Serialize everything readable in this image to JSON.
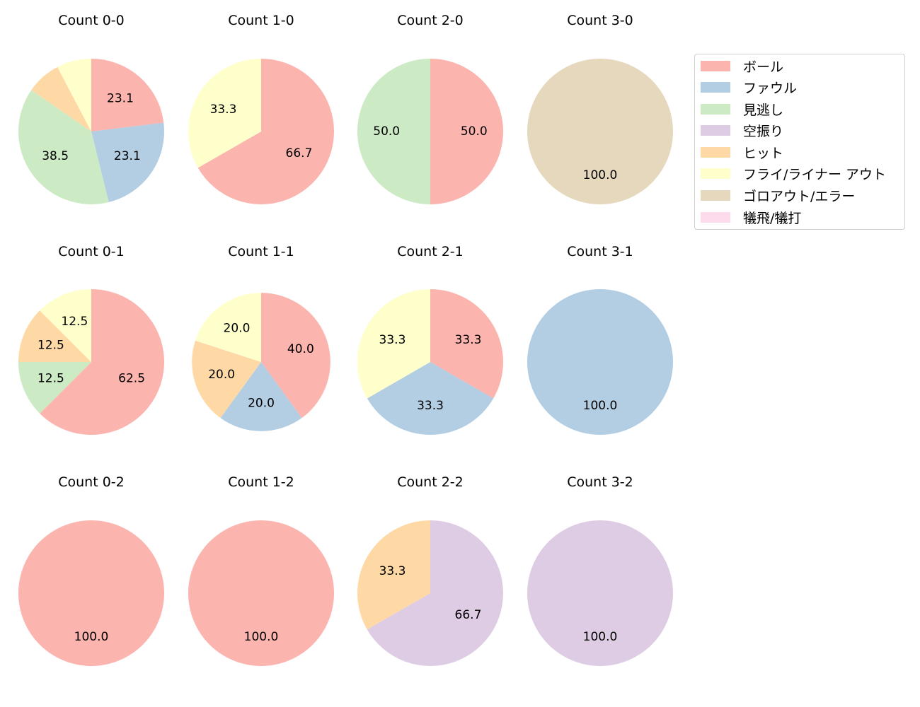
{
  "chart_data": {
    "type": "pie",
    "title": "",
    "legend": {
      "position": "upper right",
      "entries": [
        {
          "label": "ボール",
          "color": "#fbb4ae"
        },
        {
          "label": "ファウル",
          "color": "#b3cde3"
        },
        {
          "label": "見逃し",
          "color": "#ccebc5"
        },
        {
          "label": "空振り",
          "color": "#decbe4"
        },
        {
          "label": "ヒット",
          "color": "#fed9a6"
        },
        {
          "label": "フライ/ライナー アウト",
          "color": "#ffffcc"
        },
        {
          "label": "ゴロアウト/エラー",
          "color": "#e5d8bd"
        },
        {
          "label": "犠飛/犠打",
          "color": "#fddaec"
        }
      ]
    },
    "subplots": [
      {
        "title": "Count 0-0",
        "row": 0,
        "col": 0,
        "slices": [
          {
            "category": "ボール",
            "value": 23.1,
            "label": "23.1"
          },
          {
            "category": "ファウル",
            "value": 23.1,
            "label": "23.1"
          },
          {
            "category": "見逃し",
            "value": 38.5,
            "label": "38.5"
          },
          {
            "category": "ヒット",
            "value": 7.7,
            "label": ""
          },
          {
            "category": "フライ/ライナー アウト",
            "value": 7.7,
            "label": ""
          }
        ]
      },
      {
        "title": "Count 1-0",
        "row": 0,
        "col": 1,
        "slices": [
          {
            "category": "ボール",
            "value": 66.7,
            "label": "66.7"
          },
          {
            "category": "フライ/ライナー アウト",
            "value": 33.3,
            "label": "33.3"
          }
        ]
      },
      {
        "title": "Count 2-0",
        "row": 0,
        "col": 2,
        "slices": [
          {
            "category": "ボール",
            "value": 50.0,
            "label": "50.0"
          },
          {
            "category": "見逃し",
            "value": 50.0,
            "label": "50.0"
          }
        ]
      },
      {
        "title": "Count 3-0",
        "row": 0,
        "col": 3,
        "slices": [
          {
            "category": "ゴロアウト/エラー",
            "value": 100.0,
            "label": "100.0"
          }
        ]
      },
      {
        "title": "Count 0-1",
        "row": 1,
        "col": 0,
        "slices": [
          {
            "category": "ボール",
            "value": 62.5,
            "label": "62.5"
          },
          {
            "category": "見逃し",
            "value": 12.5,
            "label": "12.5"
          },
          {
            "category": "ヒット",
            "value": 12.5,
            "label": "12.5"
          },
          {
            "category": "フライ/ライナー アウト",
            "value": 12.5,
            "label": "12.5"
          }
        ]
      },
      {
        "title": "Count 1-1",
        "row": 1,
        "col": 1,
        "radius_scale": 0.95,
        "slices": [
          {
            "category": "ボール",
            "value": 40.0,
            "label": "40.0"
          },
          {
            "category": "ファウル",
            "value": 20.0,
            "label": "20.0"
          },
          {
            "category": "ヒット",
            "value": 20.0,
            "label": "20.0"
          },
          {
            "category": "フライ/ライナー アウト",
            "value": 20.0,
            "label": "20.0"
          }
        ]
      },
      {
        "title": "Count 2-1",
        "row": 1,
        "col": 2,
        "slices": [
          {
            "category": "ボール",
            "value": 33.3,
            "label": "33.3"
          },
          {
            "category": "ファウル",
            "value": 33.3,
            "label": "33.3"
          },
          {
            "category": "フライ/ライナー アウト",
            "value": 33.3,
            "label": "33.3"
          }
        ]
      },
      {
        "title": "Count 3-1",
        "row": 1,
        "col": 3,
        "slices": [
          {
            "category": "ファウル",
            "value": 100.0,
            "label": "100.0"
          }
        ]
      },
      {
        "title": "Count 0-2",
        "row": 2,
        "col": 0,
        "slices": [
          {
            "category": "ボール",
            "value": 100.0,
            "label": "100.0"
          }
        ]
      },
      {
        "title": "Count 1-2",
        "row": 2,
        "col": 1,
        "slices": [
          {
            "category": "ボール",
            "value": 100.0,
            "label": "100.0"
          }
        ]
      },
      {
        "title": "Count 2-2",
        "row": 2,
        "col": 2,
        "slices": [
          {
            "category": "空振り",
            "value": 66.7,
            "label": "66.7"
          },
          {
            "category": "ヒット",
            "value": 33.3,
            "label": "33.3"
          }
        ]
      },
      {
        "title": "Count 3-2",
        "row": 2,
        "col": 3,
        "slices": [
          {
            "category": "空振り",
            "value": 100.0,
            "label": "100.0"
          }
        ]
      }
    ]
  }
}
